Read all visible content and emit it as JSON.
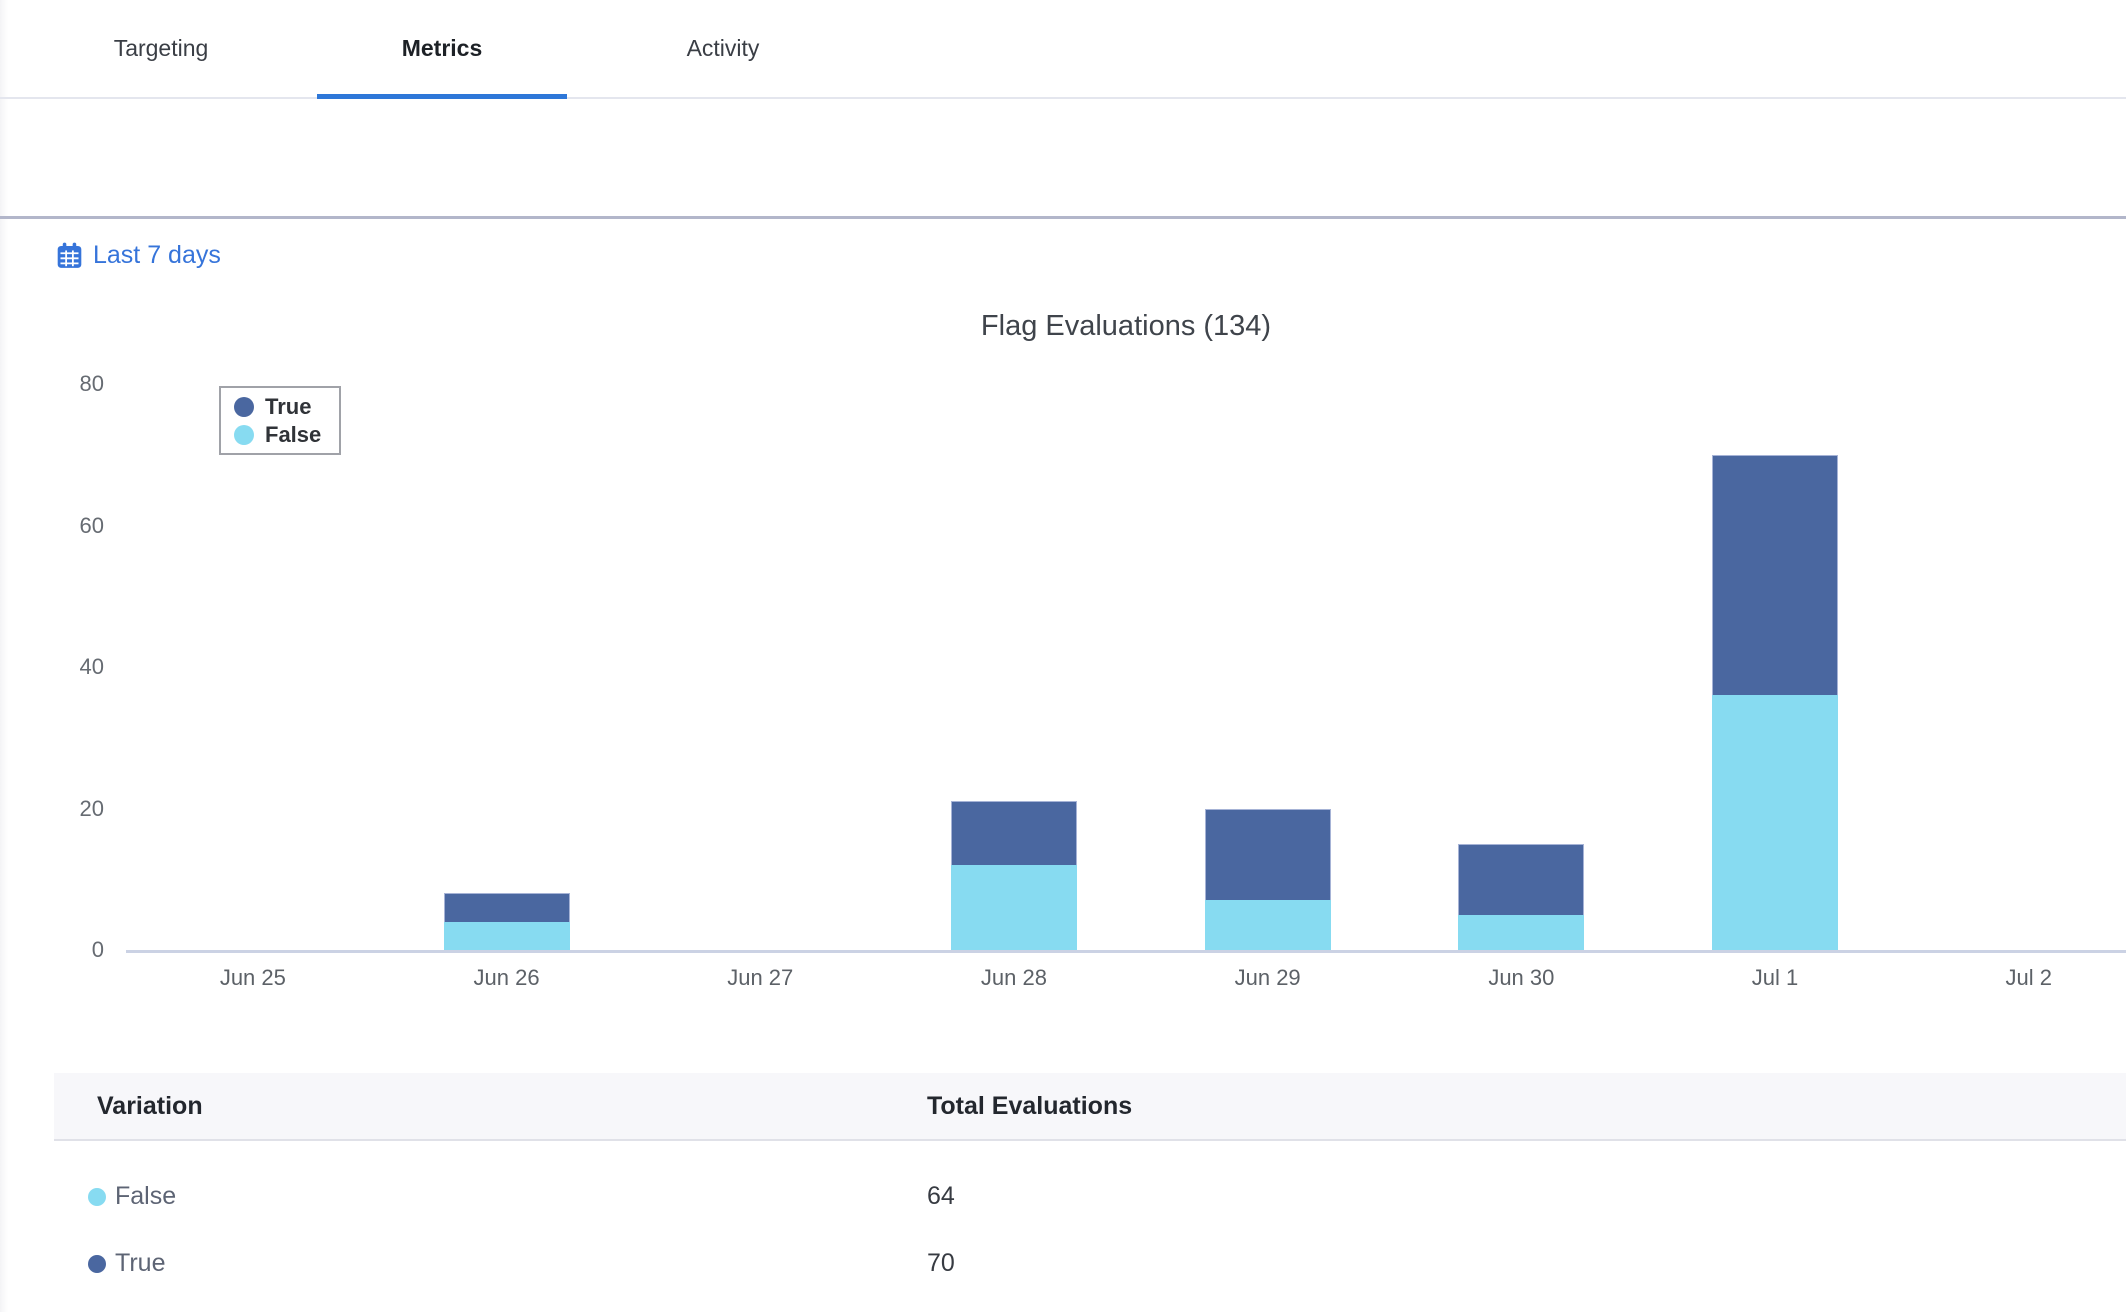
{
  "tabs": {
    "items": [
      {
        "label": "Targeting",
        "active": false
      },
      {
        "label": "Metrics",
        "active": true
      },
      {
        "label": "Activity",
        "active": false
      }
    ]
  },
  "date_filter": {
    "label": "Last 7 days",
    "icon": "calendar-icon"
  },
  "chart_data": {
    "type": "bar",
    "stacked": true,
    "title": "Flag Evaluations (134)",
    "total_evaluations": 134,
    "categories": [
      "Jun 25",
      "Jun 26",
      "Jun 27",
      "Jun 28",
      "Jun 29",
      "Jun 30",
      "Jul 1",
      "Jul 2"
    ],
    "series": [
      {
        "name": "False",
        "color": "#87dbf1",
        "values": [
          0,
          4,
          0,
          12,
          7,
          5,
          36,
          0
        ]
      },
      {
        "name": "True",
        "color": "#4a67a0",
        "values": [
          0,
          4,
          0,
          9,
          13,
          10,
          34,
          0
        ]
      }
    ],
    "legend": {
      "position": "top-left",
      "entries": [
        "True",
        "False"
      ]
    },
    "xlabel": "",
    "ylabel": "",
    "ylim": [
      0,
      80
    ],
    "yticks": [
      0,
      20,
      40,
      60,
      80
    ],
    "grid": false
  },
  "table": {
    "headers": [
      "Variation",
      "Total Evaluations"
    ],
    "rows": [
      {
        "label": "False",
        "value": "64",
        "color": "#87dbf1"
      },
      {
        "label": "True",
        "value": "70",
        "color": "#4a67a0"
      }
    ]
  },
  "colors": {
    "accent_blue": "#3674da",
    "active_tab_underline": "#2e77d8",
    "true_blue": "#4a67a0",
    "false_blue": "#87dbf1",
    "axis_line": "#cbd2e4",
    "separator": "#b2b6ca",
    "table_header_bg": "#f7f7fa"
  }
}
